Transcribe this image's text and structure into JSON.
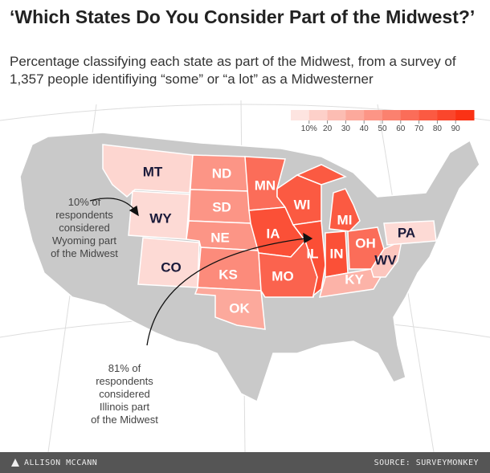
{
  "title": "‘Which States Do You Consider Part of the Midwest?’",
  "subtitle": "Percentage classifying each state as part of the Midwest, from a survey of 1,357 people identifiying “some” or “a lot” as a Midwesterner",
  "legend": {
    "ticks": [
      {
        "value": 10,
        "label": "10%"
      },
      20,
      30,
      40,
      50,
      60,
      70,
      80,
      90
    ]
  },
  "states": [
    {
      "label": "MT",
      "value": 12
    },
    {
      "label": "ND",
      "value": 45
    },
    {
      "label": "SD",
      "value": 45
    },
    {
      "label": "NE",
      "value": 45
    },
    {
      "label": "KS",
      "value": 50
    },
    {
      "label": "OK",
      "value": 35
    },
    {
      "label": "WY",
      "value": 10
    },
    {
      "label": "CO",
      "value": 10
    },
    {
      "label": "MN",
      "value": 65
    },
    {
      "label": "IA",
      "value": 80
    },
    {
      "label": "MO",
      "value": 70
    },
    {
      "label": "WI",
      "value": 75
    },
    {
      "label": "IL",
      "value": 81
    },
    {
      "label": "IN",
      "value": 80
    },
    {
      "label": "MI",
      "value": 75
    },
    {
      "label": "OH",
      "value": 65
    },
    {
      "label": "KY",
      "value": 30
    },
    {
      "label": "WV",
      "value": 20
    },
    {
      "label": "PA",
      "value": 10
    }
  ],
  "annotations": [
    {
      "lines": [
        "10% of",
        "respondents",
        "considered",
        "Wyoming part",
        "of the Midwest"
      ]
    },
    {
      "lines": [
        "81% of",
        "respondents",
        "considered",
        "Illinois part",
        "of the Midwest"
      ]
    }
  ],
  "footer": {
    "author": "ALLISON MCCANN",
    "source": "SOURCE: SURVEYMONKEY"
  }
}
